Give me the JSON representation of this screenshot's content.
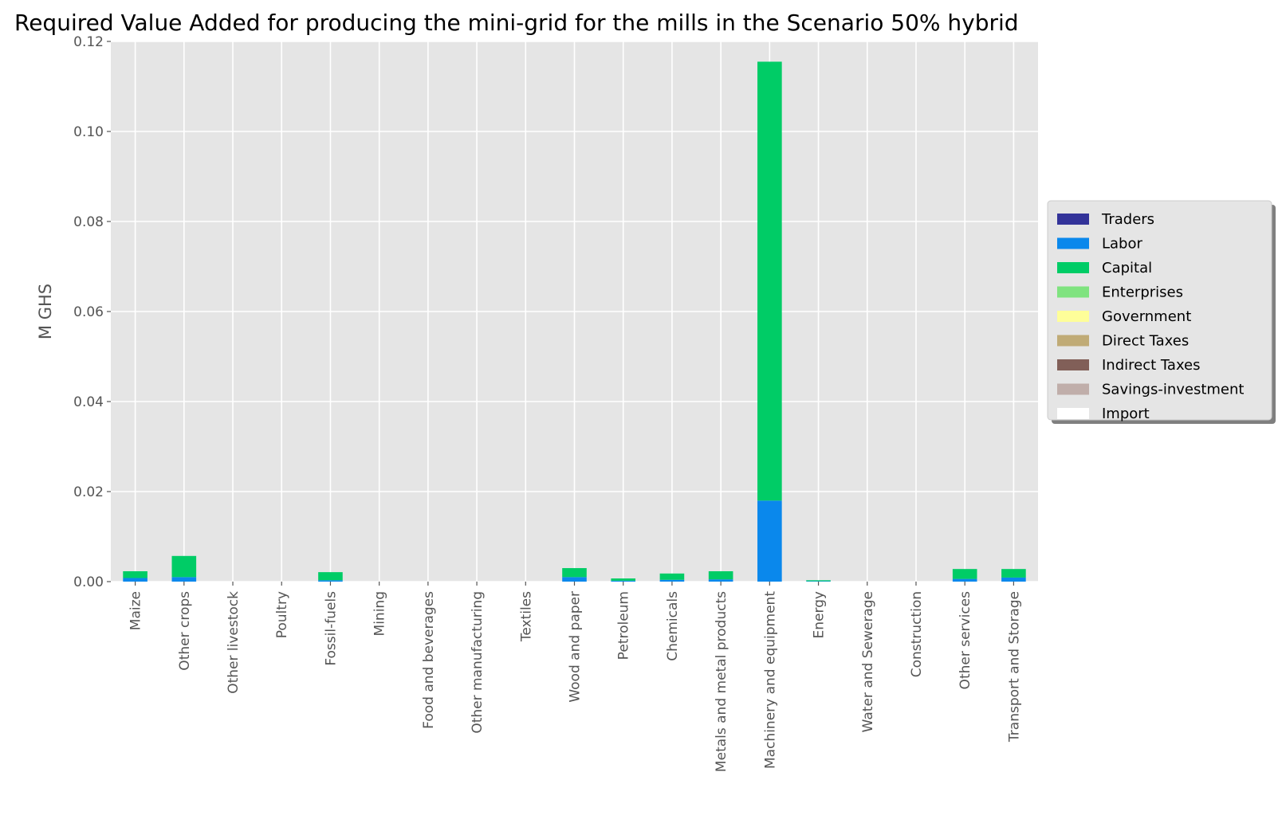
{
  "chart_data": {
    "type": "bar",
    "stacked": true,
    "title": "Required Value Added for producing the mini-grid for the mills in the Scenario 50% hybrid",
    "xlabel": "",
    "ylabel": "M GHS",
    "ylim": [
      0,
      0.12
    ],
    "yticks": [
      "0.00",
      "0.02",
      "0.04",
      "0.06",
      "0.08",
      "0.10",
      "0.12"
    ],
    "ytick_values": [
      0,
      0.02,
      0.04,
      0.06,
      0.08,
      0.1,
      0.12
    ],
    "grid": true,
    "legend_position": "center-right",
    "categories": [
      "Maize",
      "Other crops",
      "Other livestock",
      "Poultry",
      "Fossil-fuels",
      "Mining",
      "Food and beverages",
      "Other manufacturing",
      "Textiles",
      "Wood and paper",
      "Petroleum",
      "Chemicals",
      "Metals and metal products",
      "Machinery and equipment",
      "Energy",
      "Water and Sewerage",
      "Construction",
      "Other services",
      "Transport and Storage"
    ],
    "series": [
      {
        "name": "Traders",
        "color": "#333399",
        "values": [
          0,
          0,
          0,
          0,
          0,
          0,
          0,
          0,
          0,
          0,
          0,
          0,
          0,
          0,
          0,
          0,
          0,
          0,
          0
        ]
      },
      {
        "name": "Labor",
        "color": "#0a88ec",
        "values": [
          0.0008,
          0.001,
          0,
          0,
          0.0003,
          0,
          0,
          0,
          0,
          0.001,
          0.0002,
          0.0004,
          0.0005,
          0.018,
          0.0001,
          0,
          0,
          0.0006,
          0.0009
        ]
      },
      {
        "name": "Capital",
        "color": "#00cc66",
        "values": [
          0.0015,
          0.0047,
          0,
          0,
          0.0018,
          0,
          0,
          0,
          0,
          0.002,
          0.0005,
          0.0014,
          0.0018,
          0.0975,
          0.0002,
          0,
          0,
          0.0022,
          0.0019
        ]
      },
      {
        "name": "Enterprises",
        "color": "#7fe37f",
        "values": [
          0,
          0,
          0,
          0,
          0,
          0,
          0,
          0,
          0,
          0,
          0,
          0,
          0,
          0,
          0,
          0,
          0,
          0,
          0
        ]
      },
      {
        "name": "Government",
        "color": "#fefe99",
        "values": [
          0,
          0,
          0,
          0,
          0,
          0,
          0,
          0,
          0,
          0,
          0,
          0,
          0,
          0,
          0,
          0,
          0,
          0,
          0
        ]
      },
      {
        "name": "Direct Taxes",
        "color": "#c0ab76",
        "values": [
          0,
          0,
          0,
          0,
          0,
          0,
          0,
          0,
          0,
          0,
          0,
          0,
          0,
          0,
          0,
          0,
          0,
          0,
          0
        ]
      },
      {
        "name": "Indirect Taxes",
        "color": "#815f58",
        "values": [
          0,
          0,
          0,
          0,
          0,
          0,
          0,
          0,
          0,
          0,
          0,
          0,
          0,
          0,
          0,
          0,
          0,
          0,
          0
        ]
      },
      {
        "name": "Savings-investment",
        "color": "#c0aeaa",
        "values": [
          0,
          0,
          0,
          0,
          0,
          0,
          0,
          0,
          0,
          0,
          0,
          0,
          0,
          0,
          0,
          0,
          0,
          0,
          0
        ]
      },
      {
        "name": "Import",
        "color": "#ffffff",
        "values": [
          0,
          0,
          0,
          0,
          0,
          0,
          0,
          0,
          0,
          0,
          0,
          0,
          0,
          0,
          0,
          0,
          0,
          0,
          0
        ]
      }
    ]
  }
}
